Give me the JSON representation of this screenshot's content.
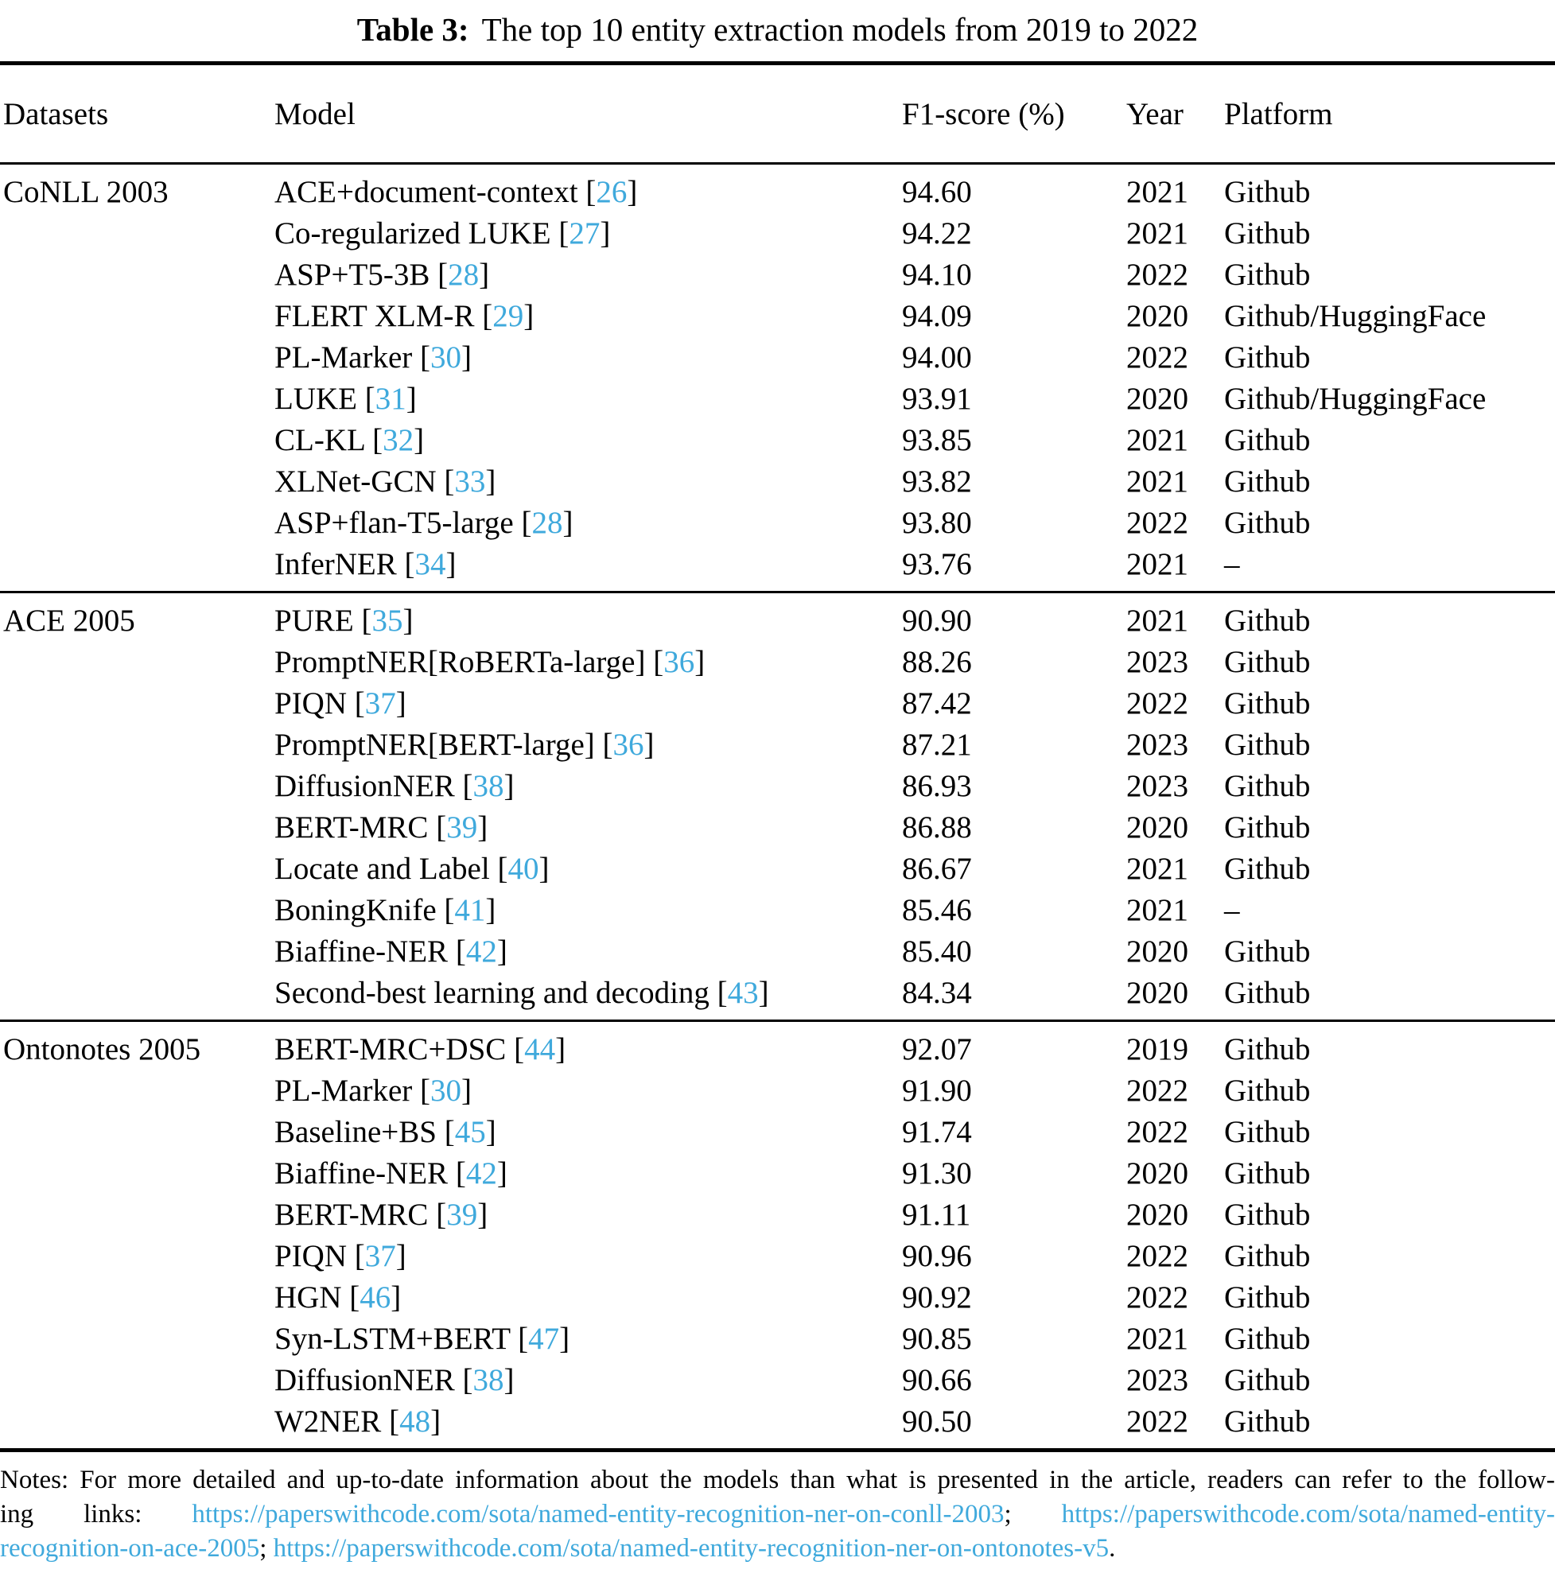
{
  "title": {
    "label": "Table 3:",
    "text": "The top 10 entity extraction models from 2019 to 2022"
  },
  "colors": {
    "accent_blue": "#3FA9DC",
    "text": "#000000",
    "background": "#FFFFFF"
  },
  "table": {
    "columns": [
      "Datasets",
      "Model",
      "F1-score (%)",
      "Year",
      "Platform"
    ],
    "sections": [
      {
        "dataset": "CoNLL 2003",
        "rows": [
          {
            "model": "ACE+document-context",
            "ref": "26",
            "f1": "94.60",
            "year": "2021",
            "platform": "Github"
          },
          {
            "model": "Co-regularized LUKE",
            "ref": "27",
            "f1": "94.22",
            "year": "2021",
            "platform": "Github"
          },
          {
            "model": "ASP+T5-3B",
            "ref": "28",
            "f1": "94.10",
            "year": "2022",
            "platform": "Github"
          },
          {
            "model": "FLERT XLM-R",
            "ref": "29",
            "f1": "94.09",
            "year": "2020",
            "platform": "Github/HuggingFace"
          },
          {
            "model": "PL-Marker",
            "ref": "30",
            "f1": "94.00",
            "year": "2022",
            "platform": "Github"
          },
          {
            "model": "LUKE",
            "ref": "31",
            "f1": "93.91",
            "year": "2020",
            "platform": "Github/HuggingFace"
          },
          {
            "model": "CL-KL",
            "ref": "32",
            "f1": "93.85",
            "year": "2021",
            "platform": "Github"
          },
          {
            "model": "XLNet-GCN",
            "ref": "33",
            "f1": "93.82",
            "year": "2021",
            "platform": "Github"
          },
          {
            "model": "ASP+flan-T5-large",
            "ref": "28",
            "f1": "93.80",
            "year": "2022",
            "platform": "Github"
          },
          {
            "model": "InferNER",
            "ref": "34",
            "f1": "93.76",
            "year": "2021",
            "platform": "–"
          }
        ]
      },
      {
        "dataset": "ACE 2005",
        "rows": [
          {
            "model": "PURE",
            "ref": "35",
            "f1": "90.90",
            "year": "2021",
            "platform": "Github"
          },
          {
            "model": "PromptNER[RoBERTa-large]",
            "ref": "36",
            "f1": "88.26",
            "year": "2023",
            "platform": "Github"
          },
          {
            "model": "PIQN",
            "ref": "37",
            "f1": "87.42",
            "year": "2022",
            "platform": "Github"
          },
          {
            "model": "PromptNER[BERT-large]",
            "ref": "36",
            "f1": "87.21",
            "year": "2023",
            "platform": "Github"
          },
          {
            "model": "DiffusionNER",
            "ref": "38",
            "f1": "86.93",
            "year": "2023",
            "platform": "Github"
          },
          {
            "model": "BERT-MRC",
            "ref": "39",
            "f1": "86.88",
            "year": "2020",
            "platform": "Github"
          },
          {
            "model": "Locate and Label",
            "ref": "40",
            "f1": "86.67",
            "year": "2021",
            "platform": "Github"
          },
          {
            "model": "BoningKnife",
            "ref": "41",
            "f1": "85.46",
            "year": "2021",
            "platform": "–"
          },
          {
            "model": "Biaffine-NER",
            "ref": "42",
            "f1": "85.40",
            "year": "2020",
            "platform": "Github"
          },
          {
            "model": "Second-best learning and decoding",
            "ref": "43",
            "f1": "84.34",
            "year": "2020",
            "platform": "Github"
          }
        ]
      },
      {
        "dataset": "Ontonotes 2005",
        "rows": [
          {
            "model": "BERT-MRC+DSC",
            "ref": "44",
            "f1": "92.07",
            "year": "2019",
            "platform": "Github"
          },
          {
            "model": "PL-Marker",
            "ref": "30",
            "f1": "91.90",
            "year": "2022",
            "platform": "Github"
          },
          {
            "model": "Baseline+BS",
            "ref": "45",
            "f1": "91.74",
            "year": "2022",
            "platform": "Github"
          },
          {
            "model": "Biaffine-NER",
            "ref": "42",
            "f1": "91.30",
            "year": "2020",
            "platform": "Github"
          },
          {
            "model": "BERT-MRC",
            "ref": "39",
            "f1": "91.11",
            "year": "2020",
            "platform": "Github"
          },
          {
            "model": "PIQN",
            "ref": "37",
            "f1": "90.96",
            "year": "2022",
            "platform": "Github"
          },
          {
            "model": "HGN",
            "ref": "46",
            "f1": "90.92",
            "year": "2022",
            "platform": "Github"
          },
          {
            "model": "Syn-LSTM+BERT",
            "ref": "47",
            "f1": "90.85",
            "year": "2021",
            "platform": "Github"
          },
          {
            "model": "DiffusionNER",
            "ref": "38",
            "f1": "90.66",
            "year": "2023",
            "platform": "Github"
          },
          {
            "model": "W2NER",
            "ref": "48",
            "f1": "90.50",
            "year": "2022",
            "platform": "Github"
          }
        ]
      }
    ]
  },
  "notes": {
    "lines": [
      {
        "segments": [
          {
            "type": "text",
            "name": "notes-text",
            "text": "Notes: For more detailed and up-to-date information about the models than what is presented in the article, readers can refer to the follow-"
          }
        ]
      },
      {
        "segments": [
          {
            "type": "text",
            "name": "notes-text",
            "text": "ing links: "
          },
          {
            "type": "link",
            "name": "notes-link-conll-2003",
            "text": "https://paperswithcode.com/sota/named-entity-recognition-ner-on-conll-2003"
          },
          {
            "type": "text",
            "name": "notes-text",
            "text": "; "
          },
          {
            "type": "link",
            "name": "notes-link-ace-2005",
            "text": "https://paperswithcode.com/sota/named-entity-"
          }
        ]
      },
      {
        "segments": [
          {
            "type": "link",
            "name": "notes-link-ace-2005",
            "text": "recognition-on-ace-2005"
          },
          {
            "type": "text",
            "name": "notes-text",
            "text": "; "
          },
          {
            "type": "link",
            "name": "notes-link-ontonotes-v5",
            "text": "https://paperswithcode.com/sota/named-entity-recognition-ner-on-ontonotes-v5"
          },
          {
            "type": "text",
            "name": "notes-text",
            "text": "."
          }
        ]
      }
    ]
  }
}
